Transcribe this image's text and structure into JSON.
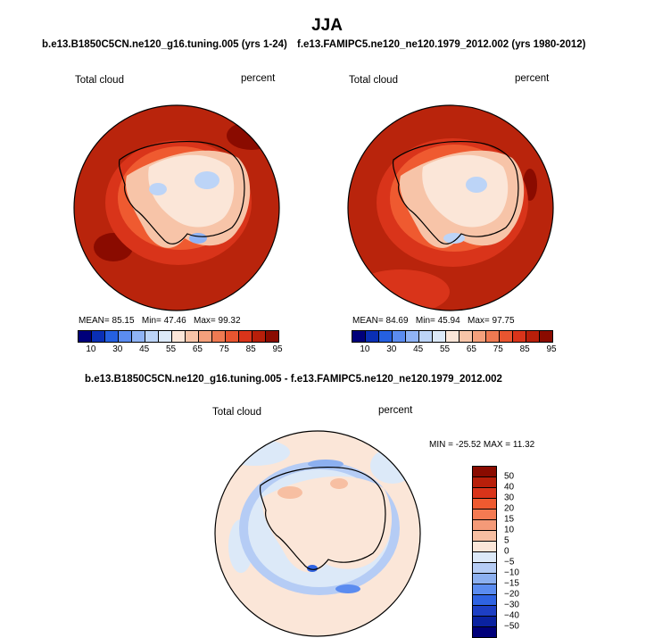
{
  "title": "JJA",
  "panels": [
    {
      "case_name": "b.e13.B1850C5CN.ne120_g16.tuning.005 (yrs 1-24)",
      "variable": "Total cloud",
      "units": "percent",
      "mean_label": "MEAN=",
      "mean": "85.15",
      "min_label": "Min=",
      "min": "47.46",
      "max_label": "Max=",
      "max": "99.32"
    },
    {
      "case_name": "f.e13.FAMIPC5.ne120_ne120.1979_2012.002 (yrs 1980-2012)",
      "variable": "Total cloud",
      "units": "percent",
      "mean_label": "MEAN=",
      "mean": "84.69",
      "min_label": "Min=",
      "min": "45.94",
      "max_label": "Max=",
      "max": "97.75"
    }
  ],
  "diff": {
    "case_name": "b.e13.B1850C5CN.ne120_g16.tuning.005 - f.e13.FAMIPC5.ne120_ne120.1979_2012.002",
    "variable": "Total cloud",
    "units": "percent",
    "minmax": "MIN = -25.52  MAX =  11.32"
  },
  "colorbar_main": {
    "labels": [
      "10",
      "30",
      "45",
      "55",
      "65",
      "75",
      "85",
      "95"
    ],
    "colors": [
      "#00007a",
      "#0a2fb5",
      "#2560e0",
      "#5b8cf0",
      "#8fb3f5",
      "#bcd4f7",
      "#dce9f8",
      "#fbe6d8",
      "#f7c4a8",
      "#f4a07c",
      "#ef7a52",
      "#e85530",
      "#d9341a",
      "#b81f0a",
      "#8a0b00"
    ]
  },
  "colorbar_diff": {
    "labels": [
      "50",
      "40",
      "30",
      "20",
      "15",
      "10",
      "5",
      "0",
      "−5",
      "−10",
      "−15",
      "−20",
      "−30",
      "−40",
      "−50"
    ],
    "colors": [
      "#8a0b00",
      "#b81f0a",
      "#d9341a",
      "#ef5a30",
      "#f47a52",
      "#f49a78",
      "#f7bfa2",
      "#fbe6d8",
      "#dce9f8",
      "#b5ccf5",
      "#8cb0f0",
      "#5b8cf0",
      "#2f63e2",
      "#1d3fc4",
      "#0a22a0",
      "#00007a"
    ]
  },
  "map": {
    "ocean_main": "#b9240c",
    "ocean_diff": "#fbe6d8",
    "land_light": "#f6d8c7"
  }
}
